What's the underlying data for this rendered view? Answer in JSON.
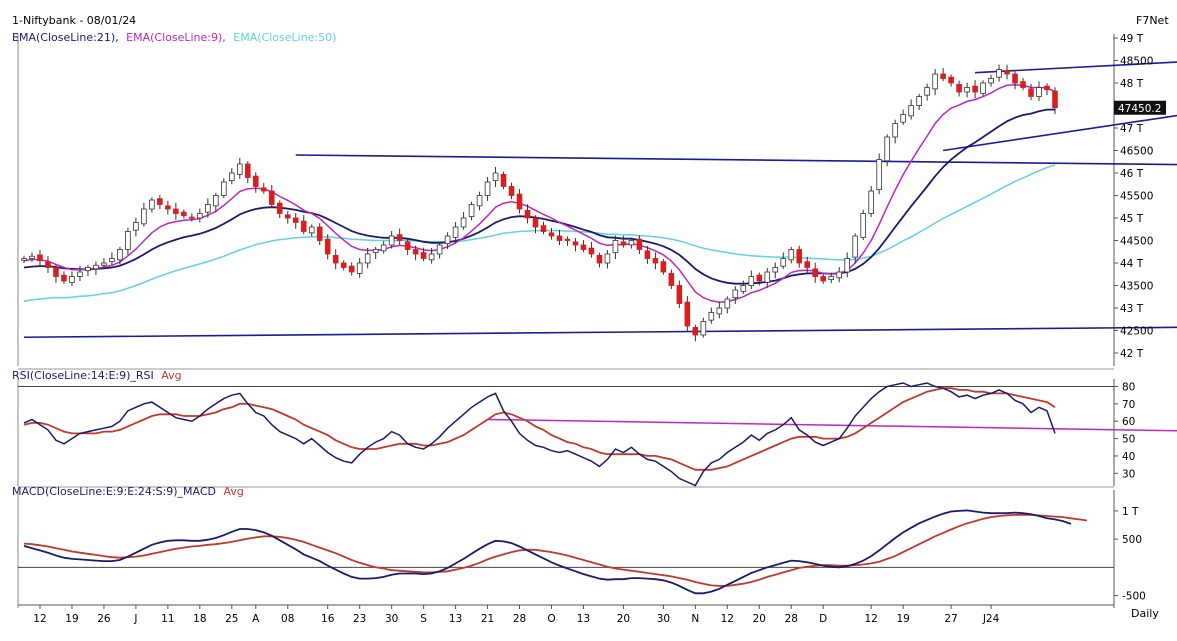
{
  "header": {
    "title": "1-Niftybank - 08/01/24",
    "brand": "F7Net",
    "timeframe": "Daily"
  },
  "legends": {
    "price": [
      {
        "text": "EMA(CloseLine:21),",
        "color": "#1a1a6e"
      },
      {
        "text": "EMA(CloseLine:9),",
        "color": "#c026c0"
      },
      {
        "text": "EMA(CloseLine:50)",
        "color": "#5fd3e0"
      }
    ],
    "rsi": [
      {
        "text": "RSI(CloseLine:14:E:9)_RSI",
        "color": "#1a1a6e"
      },
      {
        "text": "Avg",
        "color": "#c0392b"
      }
    ],
    "macd": [
      {
        "text": "MACD(CloseLine:E:9:E:24:S:9)_MACD",
        "color": "#1a1a6e"
      },
      {
        "text": "Avg",
        "color": "#c0392b"
      }
    ]
  },
  "colors": {
    "up": "#ffffff",
    "down": "#d81e1e",
    "candle_outline": "#333333",
    "main_line": "#1a1a6e",
    "ema9": "#c026c0",
    "ema50": "#5fd3e0",
    "avg": "#c0392b",
    "rsi_trend": "#c026c0",
    "trendline": "#1a1a9e"
  },
  "chart_data": [
    {
      "type": "candlestick",
      "panel": "price",
      "ylim": [
        41800,
        49000
      ],
      "yticks": [
        {
          "v": 49000,
          "label": "49 T"
        },
        {
          "v": 48500,
          "label": "48500"
        },
        {
          "v": 48000,
          "label": "48 T"
        },
        {
          "v": 47500,
          "label": "47500"
        },
        {
          "v": 47000,
          "label": "47 T"
        },
        {
          "v": 46500,
          "label": "46500"
        },
        {
          "v": 46000,
          "label": "46 T"
        },
        {
          "v": 45500,
          "label": "45500"
        },
        {
          "v": 45000,
          "label": "45 T"
        },
        {
          "v": 44500,
          "label": "44500"
        },
        {
          "v": 44000,
          "label": "44 T"
        },
        {
          "v": 43500,
          "label": "43500"
        },
        {
          "v": 43000,
          "label": "43 T"
        },
        {
          "v": 42500,
          "label": "42500"
        },
        {
          "v": 42000,
          "label": "42 T"
        }
      ],
      "last_price_label": "47450.2",
      "last_price": 47450,
      "close_series": [
        44100,
        44150,
        44050,
        43900,
        43700,
        43600,
        43700,
        43800,
        43900,
        43950,
        44000,
        44100,
        44300,
        44700,
        44900,
        45200,
        45400,
        45300,
        45200,
        45100,
        45050,
        45000,
        45100,
        45300,
        45500,
        45800,
        46000,
        46200,
        45900,
        45700,
        45600,
        45300,
        45100,
        45000,
        44900,
        44700,
        44800,
        44500,
        44200,
        44000,
        43900,
        43800,
        44000,
        44200,
        44300,
        44400,
        44600,
        44500,
        44300,
        44200,
        44100,
        44200,
        44400,
        44600,
        44800,
        45000,
        45300,
        45500,
        45800,
        46000,
        45700,
        45500,
        45200,
        45000,
        44800,
        44700,
        44600,
        44500,
        44500,
        44400,
        44300,
        44200,
        44000,
        44200,
        44500,
        44400,
        44500,
        44300,
        44100,
        44000,
        43800,
        43500,
        43100,
        42600,
        42400,
        42700,
        42900,
        43000,
        43200,
        43400,
        43500,
        43700,
        43600,
        43800,
        43900,
        44100,
        44300,
        44000,
        43900,
        43700,
        43600,
        43700,
        43800,
        44100,
        44600,
        45100,
        45600,
        46300,
        46800,
        47100,
        47300,
        47500,
        47700,
        47900,
        48200,
        48100,
        48000,
        47800,
        47900,
        47800,
        48000,
        48100,
        48300,
        48200,
        48000,
        47900,
        47700,
        47900,
        47850,
        47450
      ],
      "ema9": [
        44050,
        44080,
        44070,
        44040,
        43970,
        43900,
        43850,
        43850,
        43860,
        43880,
        43910,
        43950,
        44020,
        44160,
        44310,
        44490,
        44670,
        44800,
        44880,
        44920,
        44950,
        44960,
        44990,
        45060,
        45150,
        45280,
        45430,
        45590,
        45650,
        45660,
        45650,
        45580,
        45480,
        45390,
        45290,
        45170,
        45100,
        44990,
        44830,
        44660,
        44510,
        44370,
        44300,
        44280,
        44280,
        44300,
        44360,
        44390,
        44370,
        44340,
        44290,
        44270,
        44300,
        44360,
        44450,
        44560,
        44710,
        44870,
        45050,
        45240,
        45330,
        45360,
        45330,
        45260,
        45170,
        45080,
        45000,
        44900,
        44820,
        44730,
        44640,
        44550,
        44440,
        44390,
        44410,
        44410,
        44430,
        44400,
        44340,
        44270,
        44180,
        44040,
        43850,
        43600,
        43360,
        43230,
        43160,
        43130,
        43140,
        43190,
        43250,
        43340,
        43390,
        43470,
        43550,
        43660,
        43790,
        43830,
        43840,
        43820,
        43770,
        43760,
        43770,
        43840,
        44000,
        44220,
        44500,
        44860,
        45250,
        45620,
        45960,
        46260,
        46550,
        46820,
        47100,
        47300,
        47440,
        47510,
        47590,
        47630,
        47700,
        47780,
        47880,
        47950,
        47960,
        47950,
        47900,
        47900,
        47890,
        47810
      ],
      "ema21": [
        43900,
        43920,
        43930,
        43930,
        43910,
        43880,
        43870,
        43860,
        43860,
        43870,
        43880,
        43900,
        43940,
        44010,
        44090,
        44190,
        44300,
        44390,
        44460,
        44520,
        44570,
        44610,
        44650,
        44710,
        44780,
        44870,
        44970,
        45080,
        45150,
        45200,
        45230,
        45240,
        45230,
        45210,
        45180,
        45140,
        45110,
        45060,
        44980,
        44890,
        44800,
        44710,
        44650,
        44610,
        44580,
        44560,
        44560,
        44560,
        44540,
        44510,
        44470,
        44450,
        44450,
        44460,
        44490,
        44540,
        44610,
        44690,
        44790,
        44900,
        44970,
        45020,
        45040,
        45030,
        45010,
        44980,
        44940,
        44900,
        44850,
        44800,
        44740,
        44690,
        44620,
        44570,
        44560,
        44540,
        44540,
        44510,
        44470,
        44430,
        44370,
        44290,
        44180,
        44030,
        43870,
        43750,
        43660,
        43600,
        43560,
        43540,
        43540,
        43550,
        43560,
        43580,
        43610,
        43660,
        43720,
        43750,
        43770,
        43770,
        43770,
        43760,
        43770,
        43800,
        43870,
        43980,
        44130,
        44330,
        44560,
        44800,
        45030,
        45260,
        45480,
        45700,
        45930,
        46130,
        46300,
        46440,
        46570,
        46680,
        46800,
        46920,
        47040,
        47150,
        47230,
        47290,
        47320,
        47370,
        47410,
        47410
      ],
      "ema50": [
        43150,
        43180,
        43200,
        43220,
        43230,
        43230,
        43240,
        43260,
        43270,
        43290,
        43320,
        43340,
        43380,
        43440,
        43500,
        43570,
        43640,
        43710,
        43770,
        43830,
        43880,
        43930,
        43980,
        44030,
        44090,
        44150,
        44220,
        44290,
        44350,
        44410,
        44450,
        44490,
        44520,
        44540,
        44560,
        44570,
        44580,
        44580,
        44580,
        44560,
        44550,
        44530,
        44520,
        44510,
        44500,
        44500,
        44500,
        44500,
        44500,
        44490,
        44480,
        44470,
        44470,
        44470,
        44480,
        44490,
        44520,
        44550,
        44580,
        44620,
        44660,
        44680,
        44700,
        44710,
        44720,
        44720,
        44720,
        44720,
        44710,
        44700,
        44690,
        44680,
        44660,
        44640,
        44640,
        44630,
        44630,
        44610,
        44600,
        44580,
        44560,
        44530,
        44490,
        44440,
        44380,
        44330,
        44290,
        44260,
        44230,
        44200,
        44180,
        44160,
        44150,
        44140,
        44130,
        44130,
        44130,
        44120,
        44110,
        44100,
        44090,
        44080,
        44070,
        44070,
        44080,
        44110,
        44150,
        44220,
        44300,
        44390,
        44490,
        44580,
        44680,
        44780,
        44890,
        44990,
        45080,
        45170,
        45260,
        45350,
        45440,
        45530,
        45630,
        45720,
        45810,
        45890,
        45970,
        46050,
        46120,
        46180
      ],
      "trendlines": [
        {
          "from": [
            0,
            42350
          ],
          "to": [
            164,
            42600
          ]
        },
        {
          "from": [
            34,
            46400
          ],
          "to": [
            164,
            46150
          ]
        },
        {
          "from": [
            119,
            48230
          ],
          "to": [
            164,
            48650
          ]
        },
        {
          "from": [
            115,
            46500
          ],
          "to": [
            164,
            47800
          ]
        }
      ]
    },
    {
      "type": "line",
      "panel": "rsi",
      "ylim": [
        25,
        82
      ],
      "yticks": [
        80,
        70,
        60,
        50,
        40,
        30
      ],
      "rsi": [
        59,
        61,
        58,
        55,
        49,
        47,
        50,
        53,
        54,
        55,
        56,
        57,
        60,
        66,
        68,
        70,
        71,
        68,
        65,
        62,
        61,
        60,
        63,
        67,
        70,
        73,
        75,
        76,
        70,
        65,
        63,
        58,
        54,
        52,
        50,
        47,
        50,
        46,
        42,
        39,
        37,
        36,
        41,
        45,
        48,
        50,
        54,
        52,
        47,
        45,
        44,
        47,
        51,
        56,
        60,
        64,
        68,
        71,
        74,
        76,
        66,
        60,
        53,
        49,
        46,
        45,
        43,
        42,
        43,
        41,
        39,
        37,
        34,
        38,
        44,
        42,
        45,
        41,
        38,
        37,
        34,
        31,
        27,
        25,
        23,
        31,
        36,
        38,
        42,
        45,
        48,
        52,
        49,
        53,
        55,
        58,
        62,
        55,
        52,
        48,
        46,
        48,
        50,
        56,
        63,
        68,
        73,
        77,
        80,
        81,
        82,
        80,
        81,
        82,
        80,
        79,
        77,
        74,
        75,
        73,
        75,
        76,
        78,
        76,
        72,
        70,
        65,
        68,
        66,
        53
      ],
      "avg": [
        58,
        59,
        59,
        58,
        56,
        54,
        53,
        53,
        53,
        53,
        54,
        54,
        55,
        57,
        59,
        61,
        63,
        64,
        64,
        64,
        63,
        63,
        63,
        64,
        65,
        67,
        68,
        70,
        70,
        69,
        68,
        67,
        65,
        63,
        61,
        58,
        56,
        54,
        52,
        49,
        47,
        45,
        44,
        44,
        44,
        45,
        46,
        47,
        47,
        47,
        46,
        46,
        47,
        48,
        50,
        52,
        55,
        58,
        61,
        64,
        65,
        64,
        62,
        60,
        57,
        55,
        52,
        50,
        48,
        47,
        45,
        44,
        42,
        41,
        41,
        41,
        41,
        41,
        40,
        40,
        39,
        38,
        36,
        34,
        32,
        32,
        32,
        33,
        34,
        36,
        38,
        40,
        42,
        44,
        46,
        48,
        50,
        51,
        51,
        51,
        50,
        50,
        50,
        51,
        53,
        56,
        59,
        62,
        65,
        68,
        71,
        73,
        75,
        77,
        78,
        79,
        79,
        78,
        78,
        77,
        77,
        76,
        76,
        76,
        75,
        74,
        73,
        72,
        71,
        68
      ],
      "trendline": {
        "from": [
          58,
          61
        ],
        "to": [
          164,
          53
        ]
      },
      "ref_level": 50
    },
    {
      "type": "line",
      "panel": "macd",
      "ylim": [
        -650,
        1300
      ],
      "yticks": [
        {
          "v": 1000,
          "label": "1 T"
        },
        {
          "v": 500,
          "label": "500"
        },
        {
          "v": -500,
          "label": "-500"
        }
      ],
      "zero": 0,
      "macd": [
        380,
        340,
        300,
        260,
        210,
        170,
        150,
        140,
        130,
        120,
        110,
        110,
        130,
        190,
        260,
        330,
        400,
        440,
        470,
        480,
        480,
        470,
        470,
        490,
        520,
        570,
        630,
        680,
        680,
        660,
        620,
        560,
        480,
        400,
        320,
        230,
        170,
        110,
        30,
        -40,
        -110,
        -170,
        -200,
        -200,
        -190,
        -170,
        -130,
        -110,
        -110,
        -110,
        -120,
        -110,
        -70,
        -10,
        70,
        150,
        240,
        330,
        410,
        470,
        460,
        430,
        370,
        300,
        230,
        160,
        90,
        30,
        -20,
        -70,
        -120,
        -160,
        -200,
        -220,
        -210,
        -210,
        -190,
        -190,
        -200,
        -210,
        -230,
        -270,
        -330,
        -400,
        -460,
        -460,
        -430,
        -380,
        -310,
        -240,
        -170,
        -100,
        -50,
        0,
        40,
        80,
        120,
        110,
        90,
        60,
        30,
        10,
        0,
        20,
        60,
        120,
        200,
        300,
        410,
        520,
        620,
        700,
        780,
        840,
        900,
        950,
        990,
        1000,
        1010,
        990,
        970,
        960,
        960,
        960,
        970,
        960,
        940,
        910,
        870,
        850,
        820,
        770
      ],
      "avg": [
        420,
        410,
        390,
        370,
        340,
        310,
        280,
        260,
        240,
        220,
        200,
        180,
        170,
        180,
        190,
        210,
        240,
        270,
        300,
        330,
        350,
        370,
        380,
        400,
        410,
        430,
        450,
        480,
        510,
        530,
        550,
        550,
        540,
        520,
        490,
        450,
        400,
        350,
        300,
        250,
        190,
        130,
        80,
        40,
        0,
        -20,
        -50,
        -60,
        -70,
        -80,
        -90,
        -90,
        -80,
        -70,
        -40,
        -10,
        30,
        80,
        140,
        190,
        230,
        270,
        300,
        310,
        310,
        290,
        270,
        240,
        210,
        170,
        130,
        90,
        50,
        10,
        -20,
        -40,
        -60,
        -80,
        -100,
        -120,
        -140,
        -160,
        -190,
        -220,
        -260,
        -290,
        -320,
        -330,
        -330,
        -310,
        -290,
        -260,
        -220,
        -170,
        -130,
        -90,
        -50,
        -10,
        10,
        30,
        40,
        40,
        30,
        30,
        40,
        50,
        70,
        100,
        150,
        200,
        270,
        340,
        410,
        480,
        550,
        610,
        670,
        730,
        780,
        820,
        860,
        890,
        910,
        920,
        930,
        930,
        930,
        920,
        910,
        900,
        890,
        870,
        850,
        830
      ]
    }
  ],
  "x_axis": {
    "labels": [
      {
        "i": 2,
        "text": "12"
      },
      {
        "i": 6,
        "text": "19"
      },
      {
        "i": 10,
        "text": "26"
      },
      {
        "i": 14,
        "text": "J"
      },
      {
        "i": 18,
        "text": "11"
      },
      {
        "i": 22,
        "text": "18"
      },
      {
        "i": 26,
        "text": "25"
      },
      {
        "i": 29,
        "text": "A"
      },
      {
        "i": 33,
        "text": "08"
      },
      {
        "i": 38,
        "text": "16"
      },
      {
        "i": 42,
        "text": "23"
      },
      {
        "i": 46,
        "text": "30"
      },
      {
        "i": 50,
        "text": "S"
      },
      {
        "i": 54,
        "text": "13"
      },
      {
        "i": 58,
        "text": "21"
      },
      {
        "i": 62,
        "text": "28"
      },
      {
        "i": 66,
        "text": "O"
      },
      {
        "i": 70,
        "text": "13"
      },
      {
        "i": 75,
        "text": "20"
      },
      {
        "i": 80,
        "text": "30"
      },
      {
        "i": 84,
        "text": "N"
      },
      {
        "i": 88,
        "text": "12"
      },
      {
        "i": 92,
        "text": "20"
      },
      {
        "i": 96,
        "text": "28"
      },
      {
        "i": 100,
        "text": "D"
      },
      {
        "i": 106,
        "text": "12"
      },
      {
        "i": 110,
        "text": "19"
      },
      {
        "i": 116,
        "text": "27"
      },
      {
        "i": 121,
        "text": "J24"
      }
    ]
  }
}
